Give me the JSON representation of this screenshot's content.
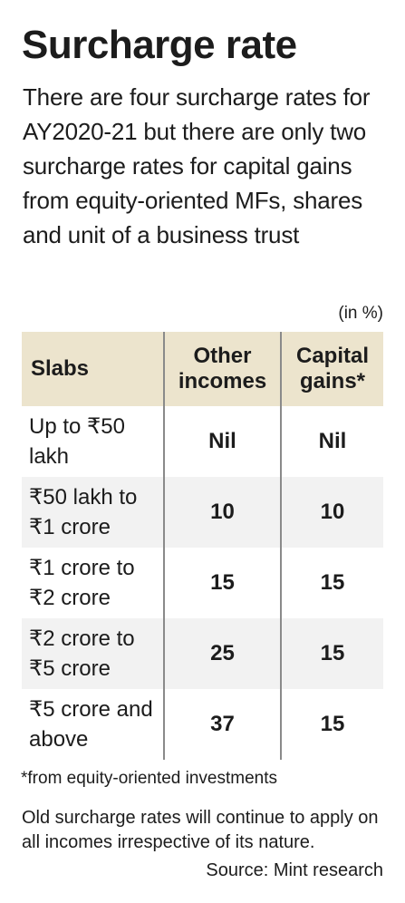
{
  "title": "Surcharge rate",
  "subtitle": "There are four surcharge rates for AY2020-21 but there are only two surcharge rates for capital gains from equity-oriented MFs, shares and unit of a business trust",
  "unit_note": "(in %)",
  "table": {
    "headers": {
      "slabs": "Slabs",
      "other_incomes": "Other incomes",
      "capital_gains": "Capital gains*"
    },
    "rows": [
      {
        "slab": "Up to ₹50 lakh",
        "other_incomes": "Nil",
        "capital_gains": "Nil"
      },
      {
        "slab": "₹50 lakh to ₹1 crore",
        "other_incomes": "10",
        "capital_gains": "10"
      },
      {
        "slab": "₹1 crore to ₹2 crore",
        "other_incomes": "15",
        "capital_gains": "15"
      },
      {
        "slab": "₹2 crore to ₹5 crore",
        "other_incomes": "25",
        "capital_gains": "15"
      },
      {
        "slab": "₹5 crore and above",
        "other_incomes": "37",
        "capital_gains": "15"
      }
    ]
  },
  "footnote": "*from equity-oriented investments",
  "remark": "Old surcharge rates will continue to apply on all incomes irrespective of its nature.",
  "source": "Source: Mint research",
  "colors": {
    "header_bg": "#ece4cd",
    "alt_row_bg": "#f2f2f2",
    "divider": "#8a8a8a",
    "text": "#1c1c1c"
  }
}
